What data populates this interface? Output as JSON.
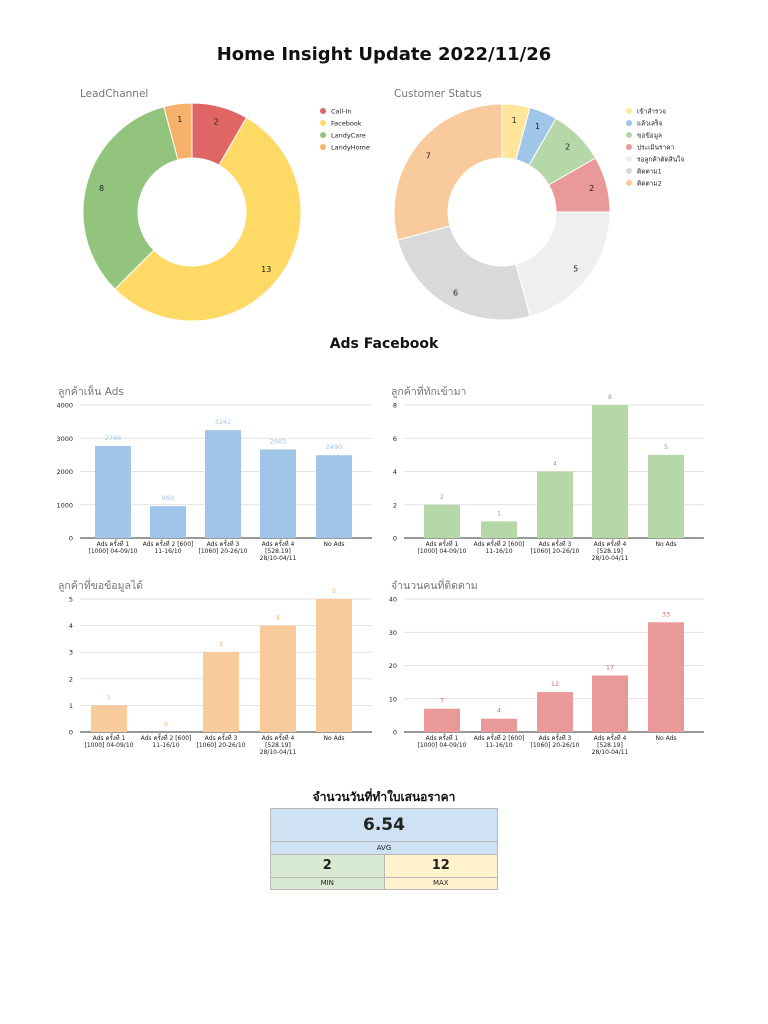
{
  "page_title": "Home Insight Update 2022/11/26",
  "ads_section_title": "Ads Facebook",
  "kpi": {
    "title": "จำนวนวันที่ทำใบเสนอราคา",
    "avg_value": "6.54",
    "avg_label": "AVG",
    "min_value": "2",
    "min_label": "MIN",
    "max_value": "12",
    "max_label": "MAX"
  },
  "chart_data": [
    {
      "id": "lead-channel",
      "type": "pie",
      "title": "LeadChannel",
      "labels": [
        "Call-In",
        "Facebook",
        "LandyCare",
        "LandyHome"
      ],
      "values": [
        2,
        13,
        8,
        1
      ],
      "colors": [
        "#e06666",
        "#ffd966",
        "#93c47d",
        "#f6b26b"
      ],
      "legend": "right"
    },
    {
      "id": "customer-status",
      "type": "pie",
      "title": "Customer Status",
      "labels": [
        "เข้าสำรวจ",
        "แล้วเสร็จ",
        "ขอข้อมูล",
        "ประเมินราคา",
        "รอลูกค้าตัดสินใจ",
        "ติดตาม1",
        "ติดตาม2"
      ],
      "values": [
        1,
        1,
        2,
        2,
        5,
        6,
        7
      ],
      "colors": [
        "#ffe599",
        "#9fc5e8",
        "#b6d7a8",
        "#ea9999",
        "#efefef",
        "#d9d9d9",
        "#f9cb9c"
      ],
      "legend": "right"
    },
    {
      "id": "bar-views",
      "type": "bar",
      "title": "ลูกค้าเห็น Ads",
      "categories": [
        [
          "Ads ครั้งที่ 1",
          "[1000] 04-09/10"
        ],
        [
          "Ads ครั้งที่ 2 [600]",
          "11-16/10"
        ],
        [
          "Ads ครั้งที่ 3",
          "[1060] 20-26/10"
        ],
        [
          "Ads ครั้งที่ 4",
          "[528.19]",
          "28/10-04/11"
        ],
        [
          "No Ads"
        ]
      ],
      "values": [
        2766,
        960,
        3242,
        2663,
        2490
      ],
      "ylim": [
        0,
        4000
      ],
      "yticks": [
        0,
        1000,
        2000,
        3000,
        4000
      ],
      "color": "#9fc5e8",
      "label_color": "#9fc5e8",
      "grid": true
    },
    {
      "id": "bar-contacts",
      "type": "bar",
      "title": "ลูกค้าที่ทักเข้ามา",
      "categories": [
        [
          "Ads ครั้งที่ 1",
          "[1000] 04-09/10"
        ],
        [
          "Ads ครั้งที่ 2 [600]",
          "11-16/10"
        ],
        [
          "Ads ครั้งที่ 3",
          "[1060] 20-26/10"
        ],
        [
          "Ads ครั้งที่ 4",
          "[528.19]",
          "28/10-04/11"
        ],
        [
          "No Ads"
        ]
      ],
      "values": [
        2,
        1,
        4,
        8,
        5
      ],
      "ylim": [
        0,
        8
      ],
      "yticks": [
        0,
        2,
        4,
        6,
        8
      ],
      "color": "#b6d7a8",
      "label_color": "#9e9e9e",
      "grid": true
    },
    {
      "id": "bar-info-requests",
      "type": "bar",
      "title": "ลูกค้าที่ขอข้อมูลได้",
      "categories": [
        [
          "Ads ครั้งที่ 1",
          "[1000] 04-09/10"
        ],
        [
          "Ads ครั้งที่ 2 [600]",
          "11-16/10"
        ],
        [
          "Ads ครั้งที่ 3",
          "[1060] 20-26/10"
        ],
        [
          "Ads ครั้งที่ 4",
          "[528.19]",
          "28/10-04/11"
        ],
        [
          "No Ads"
        ]
      ],
      "values": [
        1,
        0,
        3,
        4,
        5
      ],
      "ylim": [
        0,
        5
      ],
      "yticks": [
        0,
        1,
        2,
        3,
        4,
        5
      ],
      "color": "#f9cb9c",
      "label_color": "#f6b26b",
      "grid": true
    },
    {
      "id": "bar-followups",
      "type": "bar",
      "title": "จำนวนคนที่ติดตาม",
      "categories": [
        [
          "Ads ครั้งที่ 1",
          "[1000] 04-09/10"
        ],
        [
          "Ads ครั้งที่ 2 [600]",
          "11-16/10"
        ],
        [
          "Ads ครั้งที่ 3",
          "[1060] 20-26/10"
        ],
        [
          "Ads ครั้งที่ 4",
          "[528.19]",
          "28/10-04/11"
        ],
        [
          "No Ads"
        ]
      ],
      "values": [
        7,
        4,
        12,
        17,
        33
      ],
      "ylim": [
        0,
        40
      ],
      "yticks": [
        0,
        10,
        20,
        30,
        40
      ],
      "color": "#ea9999",
      "label_color": "#e06666",
      "grid": true
    }
  ]
}
